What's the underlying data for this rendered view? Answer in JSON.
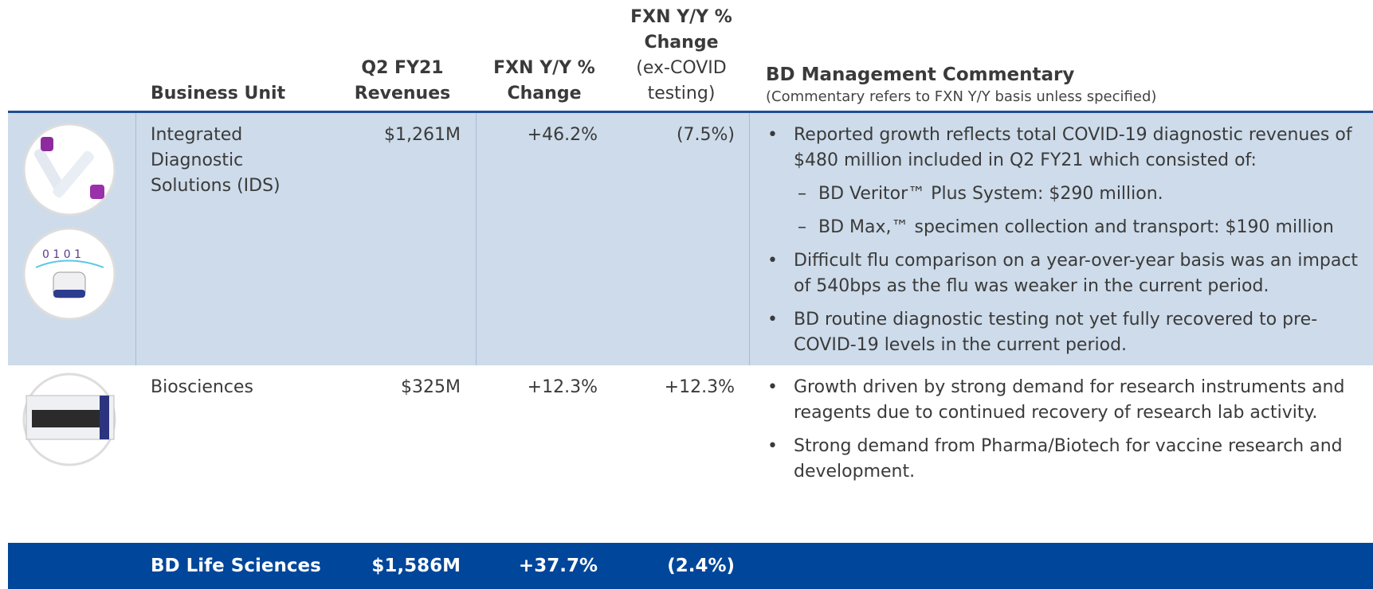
{
  "header": {
    "columns": [
      {
        "title": "Business Unit"
      },
      {
        "title": "Q2 FY21 Revenues"
      },
      {
        "title": "FXN Y/Y % Change"
      },
      {
        "title": "FXN Y/Y % Change",
        "note": "(ex-COVID testing)"
      }
    ],
    "commentary_title": "BD Management Commentary",
    "commentary_note": "(Commentary refers to FXN Y/Y basis unless specified)"
  },
  "table": {
    "rows": [
      {
        "unit": "Integrated Diagnostic Solutions (IDS)",
        "revenue": "$1,261M",
        "fxn_change": "+46.2%",
        "ex_covid_change": "(7.5%)",
        "commentary": [
          {
            "text": "Reported growth reflects total COVID-19 diagnostic revenues of $480 million included in Q2 FY21 which consisted of:",
            "sub": [
              "BD Veritor™ Plus System: $290 million.",
              "BD Max,™ specimen collection and transport: $190 million"
            ]
          },
          {
            "text": "Difficult flu comparison on a year-over-year basis was an impact of 540bps as the flu was weaker in the current period."
          },
          {
            "text": "BD routine diagnostic testing not yet fully recovered to pre-COVID-19 levels in the current period."
          }
        ]
      },
      {
        "unit": "Biosciences",
        "revenue": "$325M",
        "fxn_change": "+12.3%",
        "ex_covid_change": "+12.3%",
        "commentary": [
          {
            "text": "Growth driven by strong demand for research instruments and reagents due to continued recovery of research lab activity."
          },
          {
            "text": "Strong demand from Pharma/Biotech for vaccine research and development."
          }
        ]
      }
    ],
    "total": {
      "unit": "BD Life Sciences",
      "revenue": "$1,586M",
      "fxn_change": "+37.7%",
      "ex_covid_change": "(2.4%)"
    }
  }
}
